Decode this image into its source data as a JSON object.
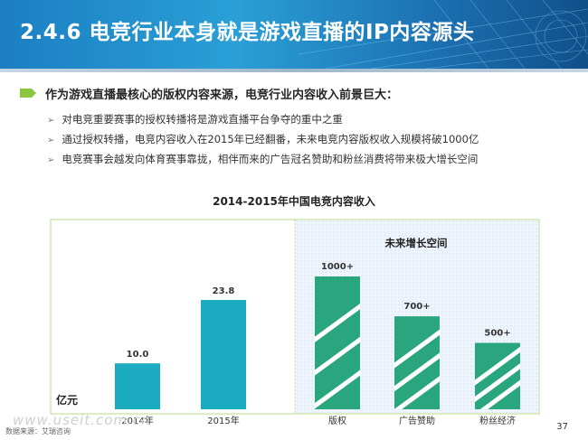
{
  "header": {
    "title": "2.4.6 电竞行业本身就是游戏直播的IP内容源头"
  },
  "lead": "作为游戏直播最核心的版权内容来源，电竞行业内容收入前景巨大：",
  "bullets": [
    "对电竞重要赛事的授权转播将是游戏直播平台争夺的重中之重",
    "通过授权转播，电竞内容收入在2015年已经翻番，未来电竞内容版权收入规模将破1000亿",
    "电竞赛事会越发向体育赛事靠拢，相伴而来的广告冠名赞助和粉丝消费将带来极大增长空间"
  ],
  "chart_data": {
    "type": "bar",
    "title": "2014-2015年中国电竞内容收入",
    "ylabel": "亿元",
    "future_label": "未来增长空间",
    "historical": {
      "categories": [
        "2014年",
        "2015年"
      ],
      "values": [
        10.0,
        23.8
      ],
      "labels": [
        "10.0",
        "23.8"
      ],
      "color": "#1aabc0"
    },
    "future": {
      "categories": [
        "版权",
        "广告赞助",
        "粉丝经济"
      ],
      "values": [
        1000,
        700,
        500
      ],
      "labels": [
        "1000+",
        "700+",
        "500+"
      ],
      "color": "#2aa67e"
    }
  },
  "footer": {
    "source": "数据来源：艾瑞咨询",
    "watermark": "www.useit.com.cn",
    "page": "37"
  },
  "colors": {
    "banner": "#1b7fc2",
    "bullet": "#8cc63f",
    "panel_border": "#b8d98a",
    "future_bg": "#eaf2fa"
  }
}
